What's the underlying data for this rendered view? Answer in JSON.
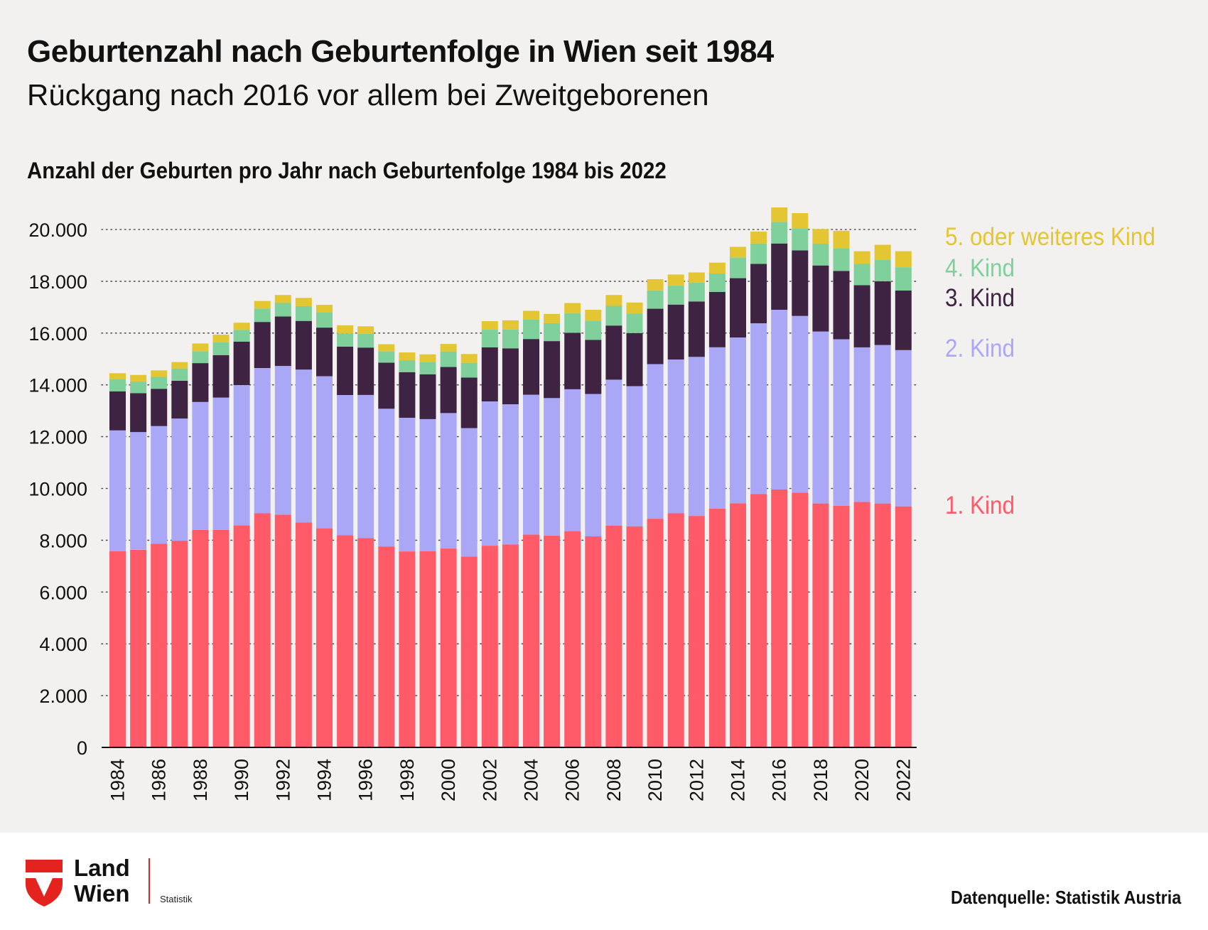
{
  "header": {
    "title": "Geburtenzahl nach Geburtenfolge in Wien seit 1984",
    "subtitle": "Rückgang nach 2016 vor allem bei Zweitgeborenen",
    "chart_heading": "Anzahl der Geburten pro Jahr nach Geburtenfolge 1984 bis 2022"
  },
  "footer": {
    "logo_line1": "Land",
    "logo_line2": "Wien",
    "logo_sub": "Statistik",
    "source": "Datenquelle: Statistik Austria"
  },
  "colors": {
    "background": "#f2f1ef",
    "kind1": "#ff5a68",
    "kind2": "#aaa7f7",
    "kind3": "#3f2342",
    "kind4": "#7fd09a",
    "kind5": "#e4c532",
    "logo_red": "#e4231f"
  },
  "chart_data": {
    "type": "bar",
    "stacked": true,
    "title": "Anzahl der Geburten pro Jahr nach Geburtenfolge 1984 bis 2022",
    "xlabel": "",
    "ylabel": "",
    "ylim": [
      0,
      21000
    ],
    "y_ticks": [
      0,
      2000,
      4000,
      6000,
      8000,
      10000,
      12000,
      14000,
      16000,
      18000,
      20000
    ],
    "y_tick_labels": [
      "0",
      "2.000",
      "4.000",
      "6.000",
      "8.000",
      "10.000",
      "12.000",
      "14.000",
      "16.000",
      "18.000",
      "20.000"
    ],
    "x_tick_labels": [
      "1984",
      "1986",
      "1988",
      "1990",
      "1992",
      "1994",
      "1996",
      "1998",
      "2000",
      "2002",
      "2004",
      "2006",
      "2008",
      "2010",
      "2012",
      "2014",
      "2016",
      "2018",
      "2020",
      "2022"
    ],
    "grid": "horizontal dotted",
    "legend_position": "right",
    "categories": [
      "1984",
      "1985",
      "1986",
      "1987",
      "1988",
      "1989",
      "1990",
      "1991",
      "1992",
      "1993",
      "1994",
      "1995",
      "1996",
      "1997",
      "1998",
      "1999",
      "2000",
      "2001",
      "2002",
      "2003",
      "2004",
      "2005",
      "2006",
      "2007",
      "2008",
      "2009",
      "2010",
      "2011",
      "2012",
      "2013",
      "2014",
      "2015",
      "2016",
      "2017",
      "2018",
      "2019",
      "2020",
      "2021",
      "2022"
    ],
    "series": [
      {
        "name": "1. Kind",
        "color": "#ff5a68",
        "values": [
          7580,
          7630,
          7860,
          7980,
          8400,
          8400,
          8580,
          9040,
          8990,
          8690,
          8460,
          8190,
          8080,
          7760,
          7570,
          7580,
          7680,
          7370,
          7790,
          7840,
          8220,
          8180,
          8350,
          8150,
          8560,
          8540,
          8830,
          9040,
          8940,
          9220,
          9430,
          9780,
          9960,
          9840,
          9420,
          9330,
          9480,
          9420,
          9310
        ]
      },
      {
        "name": "2. Kind",
        "color": "#aaa7f7",
        "values": [
          4660,
          4550,
          4550,
          4720,
          4940,
          5110,
          5410,
          5610,
          5740,
          5900,
          5870,
          5420,
          5530,
          5320,
          5160,
          5100,
          5230,
          4960,
          5570,
          5410,
          5400,
          5310,
          5480,
          5500,
          5640,
          5410,
          5970,
          5940,
          6140,
          6230,
          6400,
          6600,
          6940,
          6820,
          6640,
          6430,
          5970,
          6120,
          6030
        ]
      },
      {
        "name": "3. Kind",
        "color": "#3f2342",
        "values": [
          1510,
          1500,
          1440,
          1460,
          1500,
          1640,
          1680,
          1780,
          1910,
          1880,
          1880,
          1870,
          1830,
          1780,
          1760,
          1730,
          1780,
          1950,
          2090,
          2160,
          2150,
          2200,
          2180,
          2090,
          2090,
          2050,
          2140,
          2120,
          2140,
          2140,
          2290,
          2290,
          2560,
          2530,
          2550,
          2640,
          2400,
          2460,
          2300
        ]
      },
      {
        "name": "4. Kind",
        "color": "#7fd09a",
        "values": [
          460,
          450,
          460,
          470,
          460,
          490,
          450,
          520,
          520,
          570,
          580,
          510,
          530,
          440,
          460,
          480,
          600,
          570,
          680,
          730,
          750,
          690,
          760,
          740,
          760,
          760,
          710,
          730,
          730,
          710,
          800,
          790,
          830,
          860,
          840,
          880,
          830,
          840,
          900
        ]
      },
      {
        "name": "5. oder weiteres Kind",
        "color": "#e4c532",
        "values": [
          240,
          250,
          250,
          250,
          300,
          300,
          280,
          290,
          310,
          320,
          300,
          310,
          290,
          270,
          300,
          290,
          290,
          340,
          330,
          350,
          340,
          360,
          390,
          420,
          420,
          420,
          430,
          430,
          390,
          420,
          410,
          460,
          560,
          580,
          570,
          670,
          480,
          570,
          620
        ]
      }
    ]
  }
}
